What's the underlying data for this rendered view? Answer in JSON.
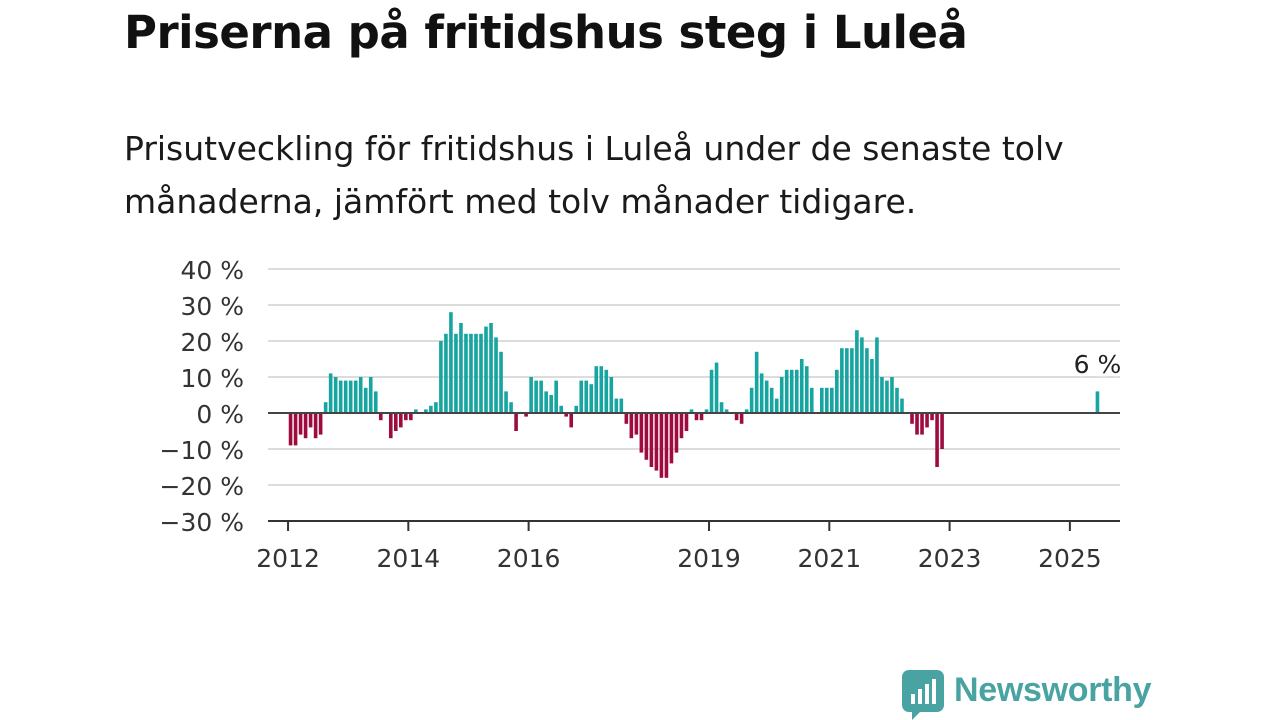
{
  "header": {
    "title": "Priserna på fritidshus steg i Luleå",
    "subtitle": "Prisutveckling för fritidshus i Luleå under de senaste tolv månaderna, jämfört med tolv månader tidigare."
  },
  "brand": {
    "name": "Newsworthy",
    "icon": "newsworthy-logo-icon",
    "color": "#4aa3a3"
  },
  "chart_data": {
    "type": "bar",
    "title": "",
    "xlabel": "",
    "ylabel": "",
    "ylim": [
      -30,
      40
    ],
    "y_ticks": [
      40,
      30,
      20,
      10,
      0,
      -10,
      -20,
      -30
    ],
    "y_tick_labels": [
      "40 %",
      "30 %",
      "20 %",
      "10 %",
      "0 %",
      "−10 %",
      "−20 %",
      "−30 %"
    ],
    "x_ticks": [
      "2012",
      "2014",
      "2016",
      "2019",
      "2021",
      "2023",
      "2025"
    ],
    "x_tick_positions": [
      "2012-01",
      "2014-01",
      "2016-01",
      "2019-01",
      "2021-01",
      "2023-01",
      "2025-01"
    ],
    "grid": true,
    "legend": "none",
    "colors": {
      "positive": "#16a5a0",
      "negative": "#9e0c3f"
    },
    "series": [
      {
        "points": [
          [
            "2012-01",
            -9
          ],
          [
            "2012-02",
            -9
          ],
          [
            "2012-03",
            -6
          ],
          [
            "2012-04",
            -7
          ],
          [
            "2012-05",
            -4
          ],
          [
            "2012-06",
            -7
          ],
          [
            "2012-07",
            -6
          ],
          [
            "2012-08",
            3
          ],
          [
            "2012-09",
            11
          ],
          [
            "2012-10",
            10
          ],
          [
            "2012-11",
            9
          ],
          [
            "2012-12",
            9
          ],
          [
            "2013-01",
            9
          ],
          [
            "2013-02",
            9
          ],
          [
            "2013-03",
            10
          ],
          [
            "2013-04",
            7
          ],
          [
            "2013-05",
            10
          ],
          [
            "2013-06",
            6
          ],
          [
            "2013-07",
            -2
          ],
          [
            "2013-08",
            0
          ],
          [
            "2013-09",
            -7
          ],
          [
            "2013-10",
            -5
          ],
          [
            "2013-11",
            -4
          ],
          [
            "2013-12",
            -2
          ],
          [
            "2014-01",
            -2
          ],
          [
            "2014-02",
            1
          ],
          [
            "2014-03",
            0
          ],
          [
            "2014-04",
            1
          ],
          [
            "2014-05",
            2
          ],
          [
            "2014-06",
            3
          ],
          [
            "2014-07",
            20
          ],
          [
            "2014-08",
            22
          ],
          [
            "2014-09",
            28
          ],
          [
            "2014-10",
            22
          ],
          [
            "2014-11",
            25
          ],
          [
            "2014-12",
            22
          ],
          [
            "2015-01",
            22
          ],
          [
            "2015-02",
            22
          ],
          [
            "2015-03",
            22
          ],
          [
            "2015-04",
            24
          ],
          [
            "2015-05",
            25
          ],
          [
            "2015-06",
            21
          ],
          [
            "2015-07",
            17
          ],
          [
            "2015-08",
            6
          ],
          [
            "2015-09",
            3
          ],
          [
            "2015-10",
            -5
          ],
          [
            "2015-11",
            0
          ],
          [
            "2015-12",
            -1
          ],
          [
            "2016-01",
            10
          ],
          [
            "2016-02",
            9
          ],
          [
            "2016-03",
            9
          ],
          [
            "2016-04",
            6
          ],
          [
            "2016-05",
            5
          ],
          [
            "2016-06",
            9
          ],
          [
            "2016-07",
            2
          ],
          [
            "2016-08",
            -1
          ],
          [
            "2016-09",
            -4
          ],
          [
            "2016-10",
            2
          ],
          [
            "2016-11",
            9
          ],
          [
            "2016-12",
            9
          ],
          [
            "2017-01",
            8
          ],
          [
            "2017-02",
            13
          ],
          [
            "2017-03",
            13
          ],
          [
            "2017-04",
            12
          ],
          [
            "2017-05",
            10
          ],
          [
            "2017-06",
            4
          ],
          [
            "2017-07",
            4
          ],
          [
            "2017-08",
            -3
          ],
          [
            "2017-09",
            -7
          ],
          [
            "2017-10",
            -6
          ],
          [
            "2017-11",
            -11
          ],
          [
            "2017-12",
            -13
          ],
          [
            "2018-01",
            -15
          ],
          [
            "2018-02",
            -16
          ],
          [
            "2018-03",
            -18
          ],
          [
            "2018-04",
            -18
          ],
          [
            "2018-05",
            -14
          ],
          [
            "2018-06",
            -11
          ],
          [
            "2018-07",
            -7
          ],
          [
            "2018-08",
            -5
          ],
          [
            "2018-09",
            1
          ],
          [
            "2018-10",
            -2
          ],
          [
            "2018-11",
            -2
          ],
          [
            "2018-12",
            1
          ],
          [
            "2019-01",
            12
          ],
          [
            "2019-02",
            14
          ],
          [
            "2019-03",
            3
          ],
          [
            "2019-04",
            1
          ],
          [
            "2019-05",
            0
          ],
          [
            "2019-06",
            -2
          ],
          [
            "2019-07",
            -3
          ],
          [
            "2019-08",
            1
          ],
          [
            "2019-09",
            7
          ],
          [
            "2019-10",
            17
          ],
          [
            "2019-11",
            11
          ],
          [
            "2019-12",
            9
          ],
          [
            "2020-01",
            7
          ],
          [
            "2020-02",
            4
          ],
          [
            "2020-03",
            10
          ],
          [
            "2020-04",
            12
          ],
          [
            "2020-05",
            12
          ],
          [
            "2020-06",
            12
          ],
          [
            "2020-07",
            15
          ],
          [
            "2020-08",
            13
          ],
          [
            "2020-09",
            7
          ],
          [
            "2020-10",
            0
          ],
          [
            "2020-11",
            7
          ],
          [
            "2020-12",
            7
          ],
          [
            "2021-01",
            7
          ],
          [
            "2021-02",
            12
          ],
          [
            "2021-03",
            18
          ],
          [
            "2021-04",
            18
          ],
          [
            "2021-05",
            18
          ],
          [
            "2021-06",
            23
          ],
          [
            "2021-07",
            21
          ],
          [
            "2021-08",
            18
          ],
          [
            "2021-09",
            15
          ],
          [
            "2021-10",
            21
          ],
          [
            "2021-11",
            10
          ],
          [
            "2021-12",
            9
          ],
          [
            "2022-01",
            10
          ],
          [
            "2022-02",
            7
          ],
          [
            "2022-03",
            4
          ],
          [
            "2022-04",
            0
          ],
          [
            "2022-05",
            -3
          ],
          [
            "2022-06",
            -6
          ],
          [
            "2022-07",
            -6
          ],
          [
            "2022-08",
            -4
          ],
          [
            "2022-09",
            -2
          ],
          [
            "2022-10",
            -15
          ],
          [
            "2022-11",
            -10
          ],
          [
            "2025-06",
            6
          ]
        ]
      }
    ],
    "annotations": [
      {
        "x": "2025-06",
        "label": "6 %"
      }
    ]
  }
}
